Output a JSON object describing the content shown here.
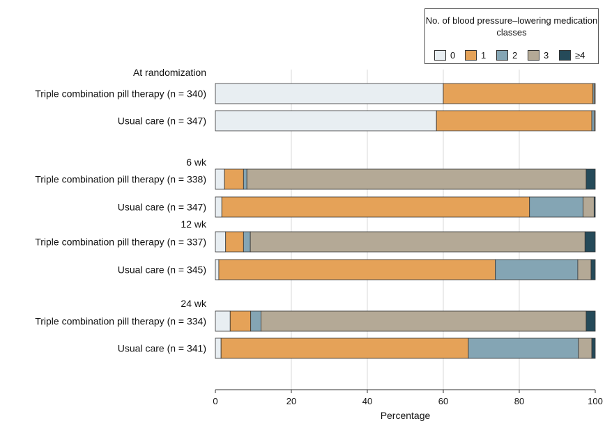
{
  "chart_data": {
    "type": "bar",
    "orientation": "horizontal",
    "stacked": true,
    "legend": {
      "title": "No. of blood pressure–lowering medication classes",
      "placement": "top-right",
      "series": [
        {
          "name": "0",
          "color": "#e8eef2"
        },
        {
          "name": "1",
          "color": "#e5a258"
        },
        {
          "name": "2",
          "color": "#84a5b4"
        },
        {
          "name": "3",
          "color": "#b4a996"
        },
        {
          "name": "≥4",
          "color": "#254a59"
        }
      ]
    },
    "groups": [
      {
        "label": "At randomization",
        "bars": [
          {
            "label": "Triple combination pill therapy (n = 340)",
            "values": [
              60,
              39.4,
              0.3,
              0.3,
              0
            ]
          },
          {
            "label": "Usual care (n = 347)",
            "values": [
              58.2,
              40.9,
              0.6,
              0.3,
              0
            ]
          }
        ]
      },
      {
        "label": "6 wk",
        "bars": [
          {
            "label": "Triple combination pill therapy (n = 338)",
            "values": [
              2.4,
              5.0,
              0.9,
              89.3,
              2.4
            ]
          },
          {
            "label": "Usual care (n = 347)",
            "values": [
              1.7,
              81.0,
              14.1,
              2.9,
              0.3
            ]
          }
        ]
      },
      {
        "label": "12 wk",
        "bars": [
          {
            "label": "Triple combination pill therapy (n = 337)",
            "values": [
              2.7,
              4.7,
              1.8,
              88.1,
              2.7
            ]
          },
          {
            "label": "Usual care (n = 345)",
            "values": [
              0.9,
              72.8,
              21.7,
              3.5,
              1.1
            ]
          }
        ]
      },
      {
        "label": "24 wk",
        "bars": [
          {
            "label": "Triple combination pill therapy (n = 334)",
            "values": [
              3.9,
              5.4,
              2.7,
              85.6,
              2.4
            ]
          },
          {
            "label": "Usual care (n = 341)",
            "values": [
              1.5,
              65.1,
              29.0,
              3.5,
              0.9
            ]
          }
        ]
      }
    ],
    "xlabel": "Percentage",
    "xlim": [
      0,
      100
    ],
    "xticks": [
      0,
      20,
      40,
      60,
      80,
      100
    ],
    "grid": true
  }
}
